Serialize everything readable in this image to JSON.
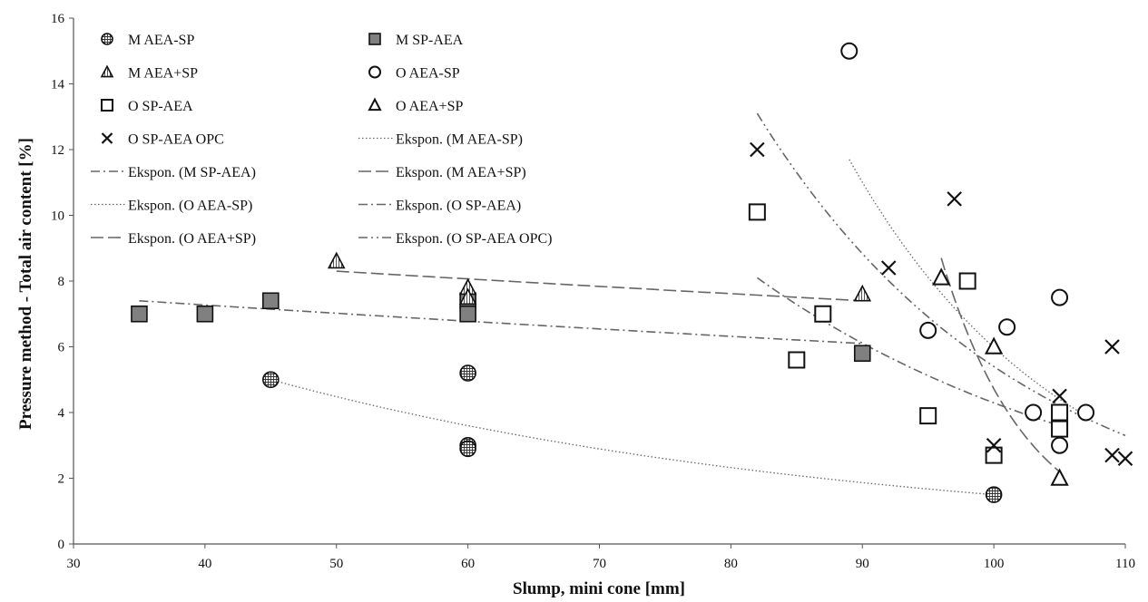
{
  "chart_data": {
    "type": "scatter",
    "title": "",
    "xlabel": "Slump, mini cone [mm]",
    "ylabel": "Pressure method - Total air content [%]",
    "xlim": [
      30,
      110
    ],
    "ylim": [
      0,
      16
    ],
    "xticks": [
      "30",
      "40",
      "50",
      "60",
      "70",
      "80",
      "90",
      "100",
      "110"
    ],
    "yticks": [
      "0",
      "2",
      "4",
      "6",
      "8",
      "10",
      "12",
      "14",
      "16"
    ],
    "grid": false,
    "legend_position": "top-left, inside plot, two columns",
    "series": [
      {
        "name": "M AEA-SP",
        "marker": "hatched-circle",
        "color": "#555555",
        "points": [
          [
            45,
            5.0
          ],
          [
            60,
            5.2
          ],
          [
            60,
            3.0
          ],
          [
            60,
            2.9
          ],
          [
            100,
            1.5
          ]
        ]
      },
      {
        "name": "M SP-AEA",
        "marker": "filled-square",
        "color": "#808080",
        "points": [
          [
            35,
            7.0
          ],
          [
            40,
            7.0
          ],
          [
            45,
            7.4
          ],
          [
            60,
            7.4
          ],
          [
            60,
            7.0
          ],
          [
            90,
            5.8
          ]
        ]
      },
      {
        "name": "M AEA+SP",
        "marker": "hatched-triangle",
        "color": "#555555",
        "points": [
          [
            50,
            8.6
          ],
          [
            60,
            7.8
          ],
          [
            60,
            7.5
          ],
          [
            90,
            7.6
          ]
        ]
      },
      {
        "name": "O AEA-SP",
        "marker": "open-circle",
        "color": "#000000",
        "points": [
          [
            89,
            15.0
          ],
          [
            95,
            6.5
          ],
          [
            101,
            6.6
          ],
          [
            103,
            4.0
          ],
          [
            105,
            7.5
          ],
          [
            105,
            3.0
          ],
          [
            107,
            4.0
          ]
        ]
      },
      {
        "name": "O SP-AEA",
        "marker": "open-square",
        "color": "#000000",
        "points": [
          [
            82,
            10.1
          ],
          [
            85,
            5.6
          ],
          [
            87,
            7.0
          ],
          [
            95,
            3.9
          ],
          [
            98,
            8.0
          ],
          [
            100,
            2.7
          ],
          [
            105,
            4.0
          ],
          [
            105,
            3.5
          ]
        ]
      },
      {
        "name": "O AEA+SP",
        "marker": "open-triangle",
        "color": "#000000",
        "points": [
          [
            96,
            8.1
          ],
          [
            100,
            6.0
          ],
          [
            105,
            2.0
          ]
        ]
      },
      {
        "name": "O SP-AEA OPC",
        "marker": "cross",
        "color": "#000000",
        "points": [
          [
            82,
            12.0
          ],
          [
            92,
            8.4
          ],
          [
            97,
            10.5
          ],
          [
            100,
            3.0
          ],
          [
            105,
            4.5
          ],
          [
            109,
            6.0
          ],
          [
            109,
            2.7
          ],
          [
            110,
            2.6
          ]
        ]
      }
    ],
    "trendlines": [
      {
        "name": "Ekspon. (M AEA-SP)",
        "type": "exponential",
        "style": "dotted",
        "color": "#666666",
        "x_range": [
          45,
          100
        ],
        "y_start": 5.0,
        "y_end": 1.5
      },
      {
        "name": "Ekspon. (M SP-AEA)",
        "type": "exponential",
        "style": "dash-dot",
        "color": "#666666",
        "x_range": [
          35,
          90
        ],
        "y_start": 7.4,
        "y_end": 6.1
      },
      {
        "name": "Ekspon. (M AEA+SP)",
        "type": "exponential",
        "style": "long-dash",
        "color": "#666666",
        "x_range": [
          50,
          90
        ],
        "y_start": 8.3,
        "y_end": 7.4
      },
      {
        "name": "Ekspon. (O AEA-SP)",
        "type": "exponential",
        "style": "dotted",
        "color": "#666666",
        "x_range": [
          89,
          107
        ],
        "y_start": 11.7,
        "y_end": 3.9
      },
      {
        "name": "Ekspon. (O SP-AEA)",
        "type": "exponential",
        "style": "dash-dot",
        "color": "#666666",
        "x_range": [
          82,
          105
        ],
        "y_start": 8.1,
        "y_end": 3.6
      },
      {
        "name": "Ekspon. (O AEA+SP)",
        "type": "exponential",
        "style": "long-dash",
        "color": "#666666",
        "x_range": [
          96,
          105
        ],
        "y_start": 8.7,
        "y_end": 2.2
      },
      {
        "name": "Ekspon. (O SP-AEA OPC)",
        "type": "exponential",
        "style": "dash-dot-dot",
        "color": "#666666",
        "x_range": [
          82,
          110
        ],
        "y_start": 13.1,
        "y_end": 3.3
      }
    ]
  }
}
